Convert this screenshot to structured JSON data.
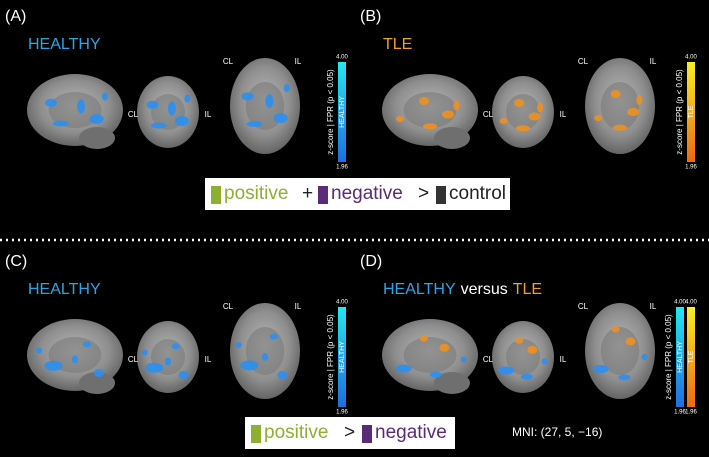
{
  "panels": [
    {
      "label": "(A)",
      "title": [
        {
          "text": "HEALTHY",
          "color": "#2aa6e6"
        }
      ],
      "orient": [
        "CL",
        "IL",
        "CL",
        "IL"
      ],
      "axis_label": "z-score | FPR (p < 0.05)",
      "colorbars": [
        {
          "max": "4.00",
          "min": "1.96",
          "name": "HEALTHY",
          "top": "#22e8f0",
          "bottom": "#1d6fe0"
        }
      ],
      "blob_color": "#2c8ff0"
    },
    {
      "label": "(B)",
      "title": [
        {
          "text": "TLE",
          "color": "#f0a02a"
        }
      ],
      "orient": [
        "CL",
        "IL",
        "CL",
        "IL"
      ],
      "axis_label": "z-score | FPR (p < 0.05)",
      "colorbars": [
        {
          "max": "4.00",
          "min": "1.96",
          "name": "TLE",
          "top": "#f8f020",
          "bottom": "#f06a10"
        }
      ],
      "blob_color": "#f09020"
    },
    {
      "label": "(C)",
      "title": [
        {
          "text": "HEALTHY",
          "color": "#2aa6e6"
        }
      ],
      "orient": [
        "CL",
        "IL",
        "CL",
        "IL"
      ],
      "axis_label": "z-score | FPR (p < 0.05)",
      "colorbars": [
        {
          "max": "4.00",
          "min": "1.96",
          "name": "HEALTHY",
          "top": "#22e8f0",
          "bottom": "#1d6fe0"
        }
      ],
      "blob_color": "#2c8ff0"
    },
    {
      "label": "(D)",
      "title": [
        {
          "text": "HEALTHY",
          "color": "#2aa6e6"
        },
        {
          "text": "versus",
          "color": "#ffffff"
        },
        {
          "text": "TLE",
          "color": "#f0a02a"
        }
      ],
      "orient": [
        "CL",
        "IL",
        "CL",
        "IL"
      ],
      "axis_label": "z-score | FPR (p < 0.05)",
      "colorbars": [
        {
          "max": "4.00",
          "min": "1.96",
          "name": "HEALTHY",
          "top": "#22e8f0",
          "bottom": "#1d6fe0"
        },
        {
          "max": "4.00",
          "min": "1.96",
          "name": "TLE",
          "top": "#f8f020",
          "bottom": "#f06a10"
        }
      ],
      "blob_color": "#2c8ff0"
    }
  ],
  "legend_top": {
    "positive": "positive",
    "plus": "+",
    "negative": "negative",
    "gt": ">",
    "control": "control"
  },
  "legend_bottom": {
    "positive": "positive",
    "gt": ">",
    "negative": "negative"
  },
  "mni": "MNI: (27, 5, −16)"
}
